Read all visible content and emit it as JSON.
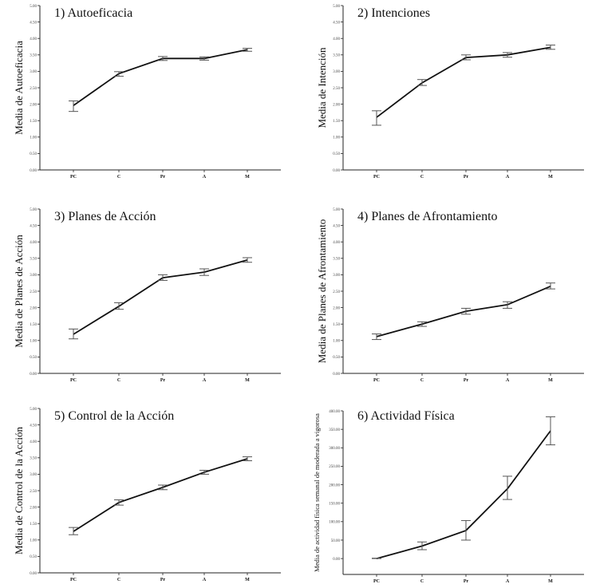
{
  "chart_data": [
    {
      "type": "line",
      "title": "1) Autoeficacia",
      "ylabel": "Media de Autoeficacia",
      "xlabel": "",
      "categories": [
        "PC",
        "C",
        "Pr",
        "A",
        "M"
      ],
      "values": [
        1.96,
        2.93,
        3.39,
        3.39,
        3.66
      ],
      "error_upper": [
        2.1,
        2.99,
        3.45,
        3.44,
        3.7
      ],
      "error_lower": [
        1.78,
        2.85,
        3.33,
        3.34,
        3.61
      ],
      "ylim": [
        0,
        5
      ],
      "yticks": [
        "0.00",
        "0.50",
        "1.00",
        "1.50",
        "2.00",
        "2.50",
        "3.00",
        "3.50",
        "4.00",
        "4.50",
        "5.00"
      ],
      "ytick_values": [
        0,
        0.5,
        1,
        1.5,
        2,
        2.5,
        3,
        3.5,
        4,
        4.5,
        5
      ],
      "grid": false
    },
    {
      "type": "line",
      "title": "2) Intenciones",
      "ylabel": "Media de Intención",
      "xlabel": "",
      "categories": [
        "PC",
        "C",
        "Pr",
        "A",
        "M"
      ],
      "values": [
        1.6,
        2.65,
        3.42,
        3.5,
        3.73
      ],
      "error_upper": [
        1.8,
        2.75,
        3.5,
        3.57,
        3.8
      ],
      "error_lower": [
        1.36,
        2.57,
        3.35,
        3.43,
        3.67
      ],
      "ylim": [
        0,
        5
      ],
      "yticks": [
        "0.00",
        "0.50",
        "1.00",
        "1.50",
        "2.00",
        "2.50",
        "3.00",
        "3.50",
        "4.00",
        "4.50",
        "5.00"
      ],
      "ytick_values": [
        0,
        0.5,
        1,
        1.5,
        2,
        2.5,
        3,
        3.5,
        4,
        4.5,
        5
      ],
      "grid": false
    },
    {
      "type": "line",
      "title": "3) Planes de Acción",
      "ylabel": "Media de Planes de Acción",
      "xlabel": "",
      "categories": [
        "PC",
        "C",
        "Pr",
        "A",
        "M"
      ],
      "values": [
        1.19,
        2.04,
        2.91,
        3.08,
        3.45
      ],
      "error_upper": [
        1.35,
        2.15,
        3.0,
        3.18,
        3.52
      ],
      "error_lower": [
        1.05,
        1.95,
        2.83,
        2.98,
        3.38
      ],
      "ylim": [
        0,
        5
      ],
      "yticks": [
        "0.00",
        "0.50",
        "1.00",
        "1.50",
        "2.00",
        "2.50",
        "3.00",
        "3.50",
        "4.00",
        "4.50",
        "5.00"
      ],
      "ytick_values": [
        0,
        0.5,
        1,
        1.5,
        2,
        2.5,
        3,
        3.5,
        4,
        4.5,
        5
      ],
      "grid": false
    },
    {
      "type": "line",
      "title": "4) Planes de Afrontamiento",
      "ylabel": "Media de Planes de Afrontamiento",
      "xlabel": "",
      "categories": [
        "PC",
        "C",
        "Pr",
        "A",
        "M"
      ],
      "values": [
        1.12,
        1.5,
        1.89,
        2.09,
        2.65
      ],
      "error_upper": [
        1.2,
        1.57,
        1.98,
        2.18,
        2.75
      ],
      "error_lower": [
        1.03,
        1.43,
        1.8,
        1.98,
        2.57
      ],
      "ylim": [
        0,
        5
      ],
      "yticks": [
        "0.00",
        "0.50",
        "1.00",
        "1.50",
        "2.00",
        "2.50",
        "3.00",
        "3.50",
        "4.00",
        "4.50",
        "5.00"
      ],
      "ytick_values": [
        0,
        0.5,
        1,
        1.5,
        2,
        2.5,
        3,
        3.5,
        4,
        4.5,
        5
      ],
      "grid": false
    },
    {
      "type": "line",
      "title": "5) Control de la Acción",
      "ylabel": "Media de Control de la Acción",
      "xlabel": "",
      "categories": [
        "PC",
        "C",
        "Pr",
        "A",
        "M"
      ],
      "values": [
        1.26,
        2.14,
        2.6,
        3.06,
        3.47
      ],
      "error_upper": [
        1.38,
        2.22,
        2.67,
        3.12,
        3.53
      ],
      "error_lower": [
        1.16,
        2.06,
        2.53,
        3.0,
        3.41
      ],
      "ylim": [
        0,
        5
      ],
      "yticks": [
        "0.00",
        "0.50",
        "1.00",
        "1.50",
        "2.00",
        "2.50",
        "3.00",
        "3.50",
        "4.00",
        "4.50",
        "5.00"
      ],
      "ytick_values": [
        0,
        0.5,
        1,
        1.5,
        2,
        2.5,
        3,
        3.5,
        4,
        4.5,
        5
      ],
      "grid": false
    },
    {
      "type": "line",
      "title": "6) Actividad Física",
      "ylabel": "Media de actividad física semanal de moderada a vigorosa",
      "xlabel": "",
      "categories": [
        "PC",
        "C",
        "Pr",
        "A",
        "M"
      ],
      "values": [
        0,
        34,
        76,
        189,
        346
      ],
      "error_upper": [
        1,
        45,
        103,
        223,
        384
      ],
      "error_lower": [
        0,
        24,
        50,
        160,
        308
      ],
      "ylim": [
        -43,
        400
      ],
      "yticks": [
        "0.00",
        "50.00",
        "100.00",
        "150.00",
        "200.00",
        "250.00",
        "300.00",
        "350.00",
        "400.00"
      ],
      "ytick_values": [
        0,
        50,
        100,
        150,
        200,
        250,
        300,
        350,
        400
      ],
      "grid": false
    }
  ]
}
